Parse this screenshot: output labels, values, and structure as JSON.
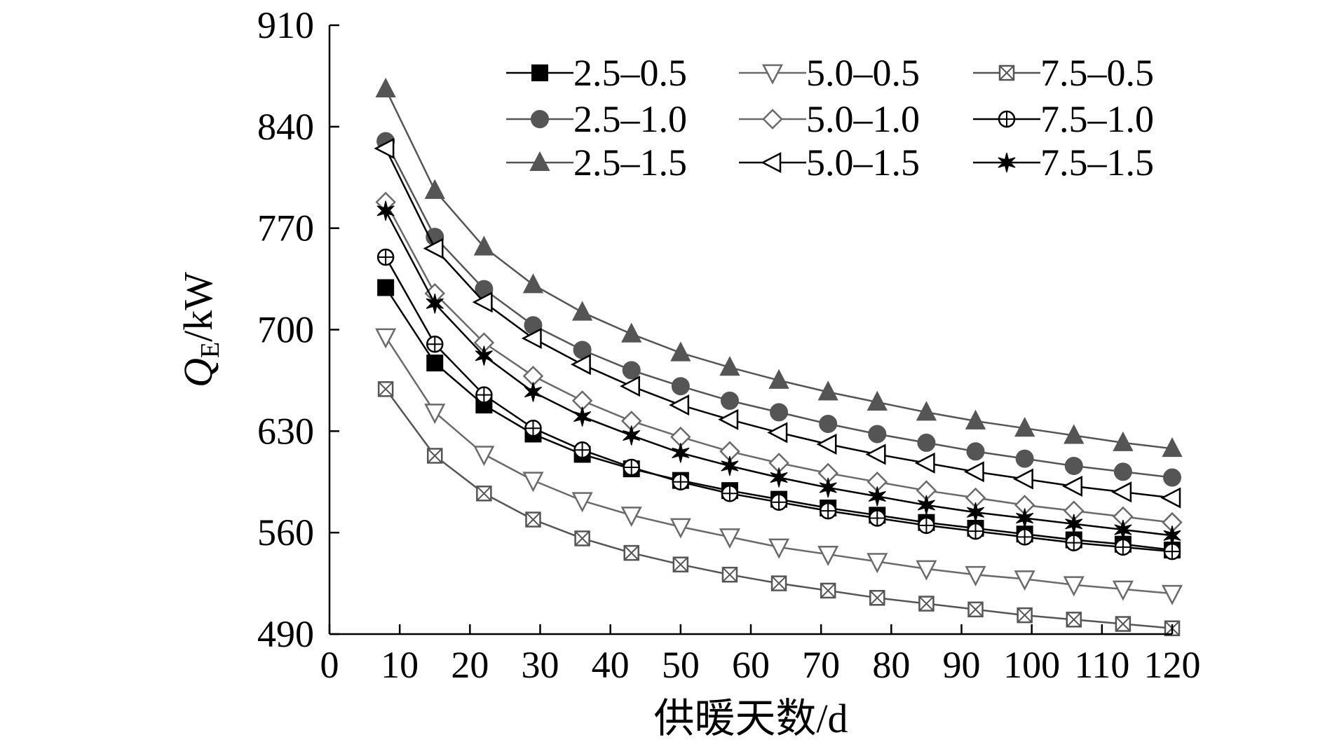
{
  "chart_data": {
    "type": "line",
    "xlabel": "供暖天数/d",
    "ylabel_main": "Q",
    "ylabel_sub": "E",
    "ylabel_unit": "/kW",
    "xlim": [
      0,
      120
    ],
    "ylim": [
      490,
      910
    ],
    "xticks": [
      0,
      10,
      20,
      30,
      40,
      50,
      60,
      70,
      80,
      90,
      100,
      110,
      120
    ],
    "yticks": [
      490,
      560,
      630,
      700,
      770,
      840,
      910
    ],
    "grid": false,
    "legend_position": "top-right",
    "x": [
      8,
      15,
      22,
      29,
      36,
      43,
      50,
      57,
      64,
      71,
      78,
      85,
      92,
      99,
      106,
      113,
      120
    ],
    "series": [
      {
        "name": "2.5–0.5",
        "marker": "square-filled",
        "color": "#000000",
        "values": [
          729,
          677,
          648,
          628,
          614,
          604,
          596,
          589,
          583,
          577,
          572,
          567,
          563,
          559,
          555,
          552,
          548
        ]
      },
      {
        "name": "2.5–1.0",
        "marker": "circle-filled",
        "color": "#555555",
        "values": [
          830,
          764,
          728,
          703,
          686,
          672,
          661,
          651,
          643,
          635,
          628,
          622,
          616,
          611,
          606,
          602,
          598
        ]
      },
      {
        "name": "2.5–1.5",
        "marker": "triangle-up-filled",
        "color": "#555555",
        "values": [
          866,
          796,
          757,
          731,
          712,
          697,
          684,
          674,
          665,
          657,
          650,
          643,
          637,
          632,
          627,
          622,
          618
        ]
      },
      {
        "name": "5.0–0.5",
        "marker": "triangle-down-open",
        "color": "#6a6a6a",
        "values": [
          695,
          643,
          614,
          596,
          582,
          572,
          564,
          557,
          550,
          545,
          540,
          535,
          531,
          528,
          524,
          521,
          518
        ]
      },
      {
        "name": "5.0–1.0",
        "marker": "diamond-open",
        "color": "#6a6a6a",
        "values": [
          788,
          725,
          691,
          668,
          651,
          637,
          626,
          616,
          608,
          601,
          595,
          589,
          584,
          579,
          575,
          571,
          567
        ]
      },
      {
        "name": "5.0–1.5",
        "marker": "triangle-left-open",
        "color": "#000000",
        "values": [
          825,
          756,
          719,
          694,
          676,
          661,
          648,
          638,
          629,
          621,
          614,
          608,
          602,
          597,
          592,
          588,
          584
        ]
      },
      {
        "name": "7.5–0.5",
        "marker": "square-x-open",
        "color": "#555555",
        "values": [
          659,
          613,
          587,
          569,
          556,
          546,
          538,
          531,
          525,
          520,
          515,
          511,
          507,
          503,
          500,
          497,
          494
        ]
      },
      {
        "name": "7.5–1.0",
        "marker": "circle-plus-open",
        "color": "#000000",
        "values": [
          750,
          690,
          655,
          632,
          617,
          605,
          595,
          587,
          581,
          575,
          570,
          565,
          561,
          557,
          553,
          550,
          547
        ]
      },
      {
        "name": "7.5–1.5",
        "marker": "star",
        "color": "#000000",
        "values": [
          782,
          718,
          682,
          657,
          640,
          627,
          615,
          606,
          598,
          591,
          585,
          579,
          574,
          570,
          566,
          562,
          558
        ]
      }
    ]
  }
}
